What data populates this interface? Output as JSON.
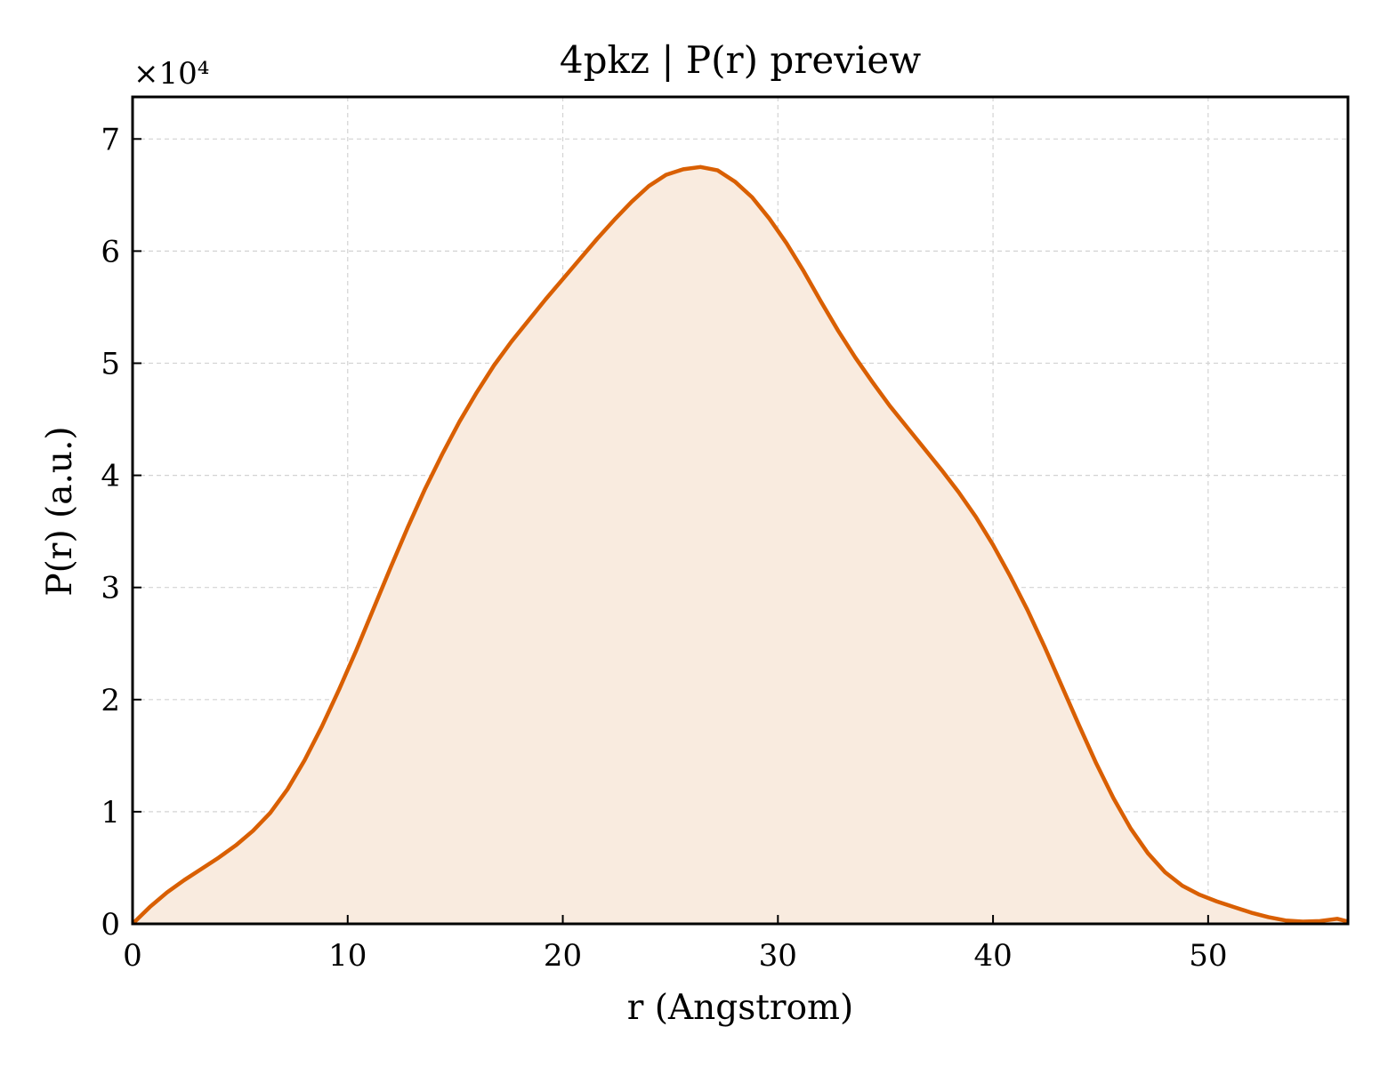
{
  "chart_data": {
    "type": "area",
    "title": "4pkz | P(r) preview",
    "xlabel": "r (Angstrom)",
    "ylabel": "P(r) (a.u.)",
    "y_multiplier_label": "×10⁴",
    "y_multiplier": 10000,
    "xlim": [
      0,
      56.5
    ],
    "ylim": [
      0,
      73750
    ],
    "x_ticks": [
      0,
      10,
      20,
      30,
      40,
      50
    ],
    "x_tick_labels": [
      "0",
      "10",
      "20",
      "30",
      "40",
      "50"
    ],
    "y_ticks": [
      0,
      10000,
      20000,
      30000,
      40000,
      50000,
      60000,
      70000
    ],
    "y_tick_labels": [
      "0",
      "1",
      "2",
      "3",
      "4",
      "5",
      "6",
      "7"
    ],
    "grid": true,
    "colors": {
      "line": "#d95f02",
      "fill": "#f9ebdf",
      "grid": "#d3d3d3",
      "axes": "#000000"
    },
    "series": [
      {
        "x": [
          0,
          0.8,
          1.6,
          2.4,
          3.2,
          4.0,
          4.8,
          5.6,
          6.4,
          7.2,
          8.0,
          8.8,
          9.6,
          10.4,
          11.2,
          12.0,
          12.8,
          13.6,
          14.4,
          15.2,
          16.0,
          16.8,
          17.6,
          18.4,
          19.2,
          20.0,
          20.8,
          21.6,
          22.4,
          23.2,
          24.0,
          24.8,
          25.6,
          26.4,
          27.2,
          28.0,
          28.8,
          29.6,
          30.4,
          31.2,
          32.0,
          32.8,
          33.6,
          34.4,
          35.2,
          36.0,
          36.8,
          37.6,
          38.4,
          39.2,
          40.0,
          40.8,
          41.6,
          42.4,
          43.2,
          44.0,
          44.8,
          45.6,
          46.4,
          47.2,
          48.0,
          48.8,
          49.6,
          50.4,
          51.2,
          52.0,
          52.8,
          53.6,
          54.4,
          55.2,
          56.0,
          56.5
        ],
        "y": [
          0,
          1500,
          2800,
          3900,
          4900,
          5900,
          7000,
          8300,
          9900,
          12000,
          14600,
          17600,
          20900,
          24400,
          28100,
          31800,
          35400,
          38800,
          41900,
          44800,
          47400,
          49800,
          51900,
          53800,
          55700,
          57500,
          59300,
          61100,
          62800,
          64400,
          65800,
          66800,
          67300,
          67500,
          67200,
          66200,
          64800,
          62900,
          60700,
          58200,
          55500,
          52900,
          50500,
          48300,
          46200,
          44300,
          42400,
          40500,
          38500,
          36300,
          33800,
          31000,
          28000,
          24700,
          21200,
          17700,
          14300,
          11200,
          8500,
          6300,
          4600,
          3400,
          2600,
          2000,
          1500,
          1000,
          600,
          300,
          200,
          250,
          450,
          200
        ]
      }
    ]
  }
}
